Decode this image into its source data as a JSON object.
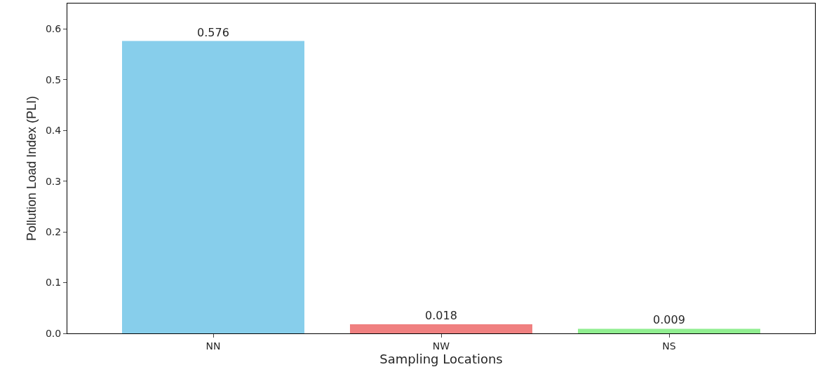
{
  "chart_data": {
    "type": "bar",
    "xlabel": "Sampling Locations",
    "ylabel": "Pollution Load Index (PLI)",
    "categories": [
      "NN",
      "NW",
      "NS"
    ],
    "values": [
      0.576,
      0.018,
      0.009
    ],
    "colors": [
      "#87ceeb",
      "#f08080",
      "#90ee90"
    ],
    "ylim": [
      0,
      0.65
    ],
    "yticks": [
      {
        "value": 0,
        "label": "0.0"
      },
      0.1,
      0.2,
      0.3,
      0.4,
      0.5,
      0.6
    ],
    "data_labels": true
  }
}
